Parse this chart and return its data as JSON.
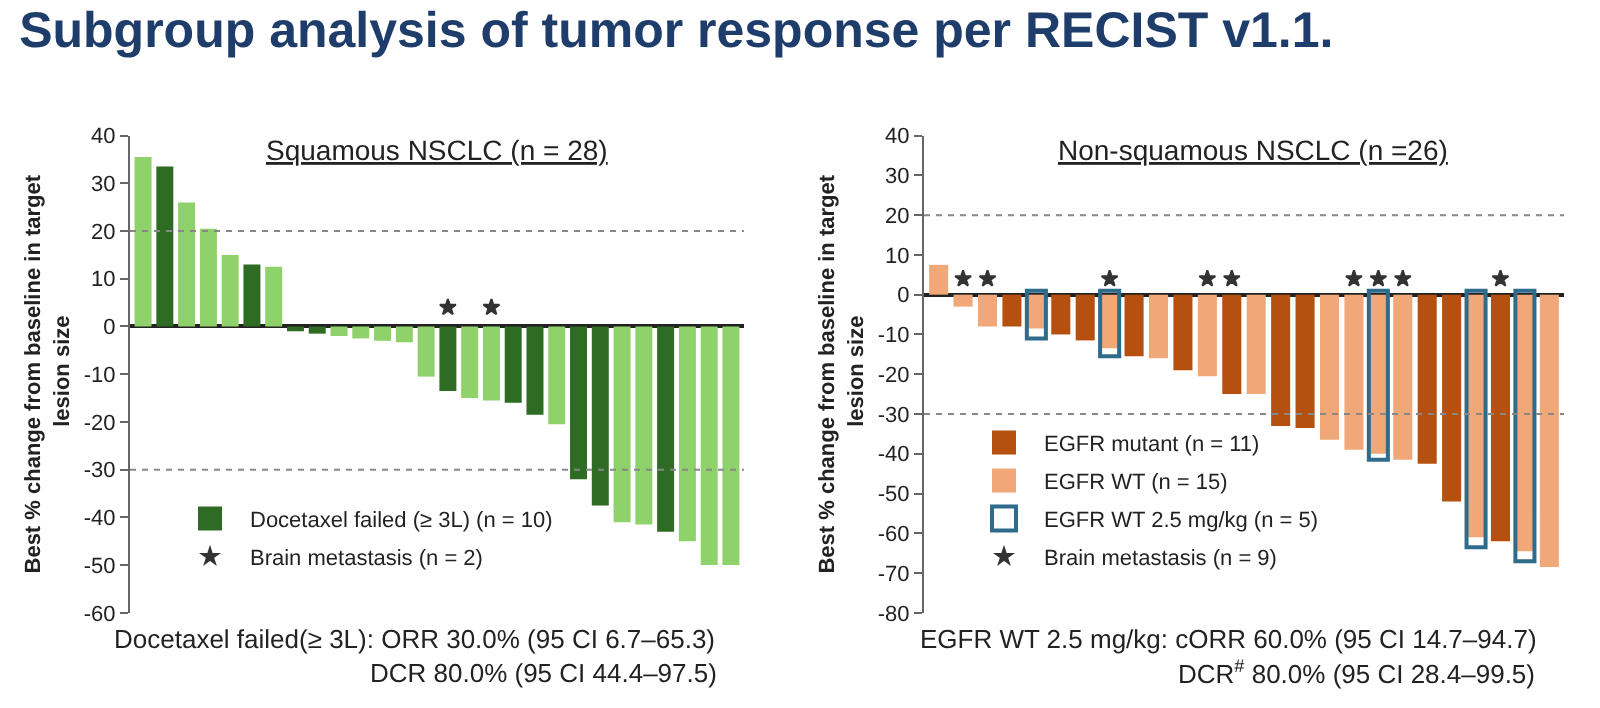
{
  "chart_data": [
    {
      "type": "bar",
      "title": "Subgroup analysis of tumor response per RECIST v1.1.",
      "subtitle": "Squamous NSCLC (n = 28)",
      "ylabel": "Best % change from baseline in target lesion size",
      "categories": [
        null,
        null,
        null,
        null,
        null,
        null,
        null,
        null,
        null,
        null,
        null,
        null,
        null,
        null,
        null,
        null,
        null,
        null,
        null,
        null,
        null,
        null,
        null,
        null,
        null,
        null,
        null,
        null
      ],
      "series": [
        {
          "color": "#8fd16a",
          "values": [
            35.5,
            null,
            26,
            20.5,
            15,
            null,
            12.5,
            null,
            null,
            -2,
            -2.5,
            -3,
            -3.3,
            -10.5,
            null,
            -15,
            -15.5,
            null,
            null,
            -20.5,
            null,
            null,
            -41,
            -41.5,
            null,
            -45,
            -50,
            -50
          ]
        },
        {
          "name": "Docetaxel failed (≥ 3L) (n = 10)",
          "color": "#2e6b23",
          "values": [
            null,
            33.5,
            null,
            null,
            null,
            13,
            null,
            -1,
            -1.5,
            null,
            null,
            null,
            null,
            null,
            -13.5,
            null,
            null,
            -16,
            -18.5,
            null,
            -32,
            -37.5,
            null,
            null,
            -43,
            null,
            null,
            null
          ]
        },
        {
          "name": "Brain metastasis (n = 2)",
          "type": "scatter",
          "marker": "star",
          "color": "#333333",
          "values": [
            null,
            null,
            null,
            null,
            null,
            null,
            null,
            null,
            null,
            null,
            null,
            null,
            null,
            null,
            4,
            null,
            4,
            null,
            null,
            null,
            null,
            null,
            null,
            null,
            null,
            null,
            null,
            null
          ]
        }
      ],
      "ylim": [
        -60,
        40
      ],
      "yticks": [
        -60,
        -50,
        -40,
        -30,
        -20,
        -10,
        0,
        10,
        20,
        30,
        40
      ],
      "ref_lines": [
        {
          "axis": "y",
          "value": 20,
          "line_style": "dotted",
          "color": "#888888"
        },
        {
          "axis": "y",
          "value": -30,
          "line_style": "dotted",
          "color": "#888888"
        }
      ],
      "legend": "bottom left",
      "annotations": [
        "Docetaxel failed(≥ 3L): ORR 30.0% (95 CI 6.7–65.3)",
        "DCR 80.0% (95 CI 44.4–97.5)"
      ]
    },
    {
      "type": "bar",
      "subtitle": "Non-squamous NSCLC (n =26)",
      "ylabel": "Best % change from baseline in target lesion size",
      "categories": [
        null,
        null,
        null,
        null,
        null,
        null,
        null,
        null,
        null,
        null,
        null,
        null,
        null,
        null,
        null,
        null,
        null,
        null,
        null,
        null,
        null,
        null,
        null,
        null,
        null,
        null
      ],
      "series": [
        {
          "name": "EGFR mutant (n = 11)",
          "color": "#b5500f",
          "values": [
            null,
            null,
            null,
            -8,
            null,
            -10,
            -11.5,
            null,
            -15.5,
            null,
            -19,
            null,
            -25,
            null,
            -33,
            -33.5,
            null,
            null,
            null,
            null,
            -42.5,
            -52,
            null,
            -62,
            null,
            null
          ]
        },
        {
          "name": "EGFR WT (n = 15)",
          "color": "#f0a878",
          "values": [
            7.5,
            -3,
            -8,
            null,
            -8.5,
            null,
            null,
            -13.5,
            null,
            -16,
            null,
            -20.5,
            null,
            -25,
            null,
            null,
            -36.5,
            -39,
            -40,
            -41.5,
            null,
            null,
            -61,
            null,
            -64.5,
            -68.5
          ]
        },
        {
          "name": "EGFR WT 2.5 mg/kg (n = 5)",
          "color": "#2f6b8a",
          "base": [
            null,
            null,
            null,
            null,
            1,
            null,
            null,
            1,
            null,
            null,
            null,
            null,
            null,
            null,
            null,
            null,
            null,
            null,
            1,
            null,
            null,
            null,
            1,
            null,
            1,
            null
          ],
          "values": [
            null,
            null,
            null,
            null,
            -12,
            null,
            null,
            -16.5,
            null,
            null,
            null,
            null,
            null,
            null,
            null,
            null,
            null,
            null,
            -42.5,
            null,
            null,
            null,
            -64.5,
            null,
            -68,
            null
          ]
        },
        {
          "name": "Brain metastasis (n = 9)",
          "type": "scatter",
          "marker": "star",
          "color": "#333333",
          "values": [
            null,
            4,
            4,
            null,
            null,
            null,
            null,
            4,
            null,
            null,
            null,
            4,
            4,
            null,
            null,
            null,
            null,
            4,
            4,
            4,
            null,
            null,
            null,
            4,
            null,
            null
          ]
        }
      ],
      "ylim": [
        -80,
        40
      ],
      "yticks": [
        -80,
        -70,
        -60,
        -50,
        -40,
        -30,
        -20,
        -10,
        0,
        10,
        20,
        30,
        40
      ],
      "ref_lines": [
        {
          "axis": "y",
          "value": 20,
          "line_style": "dotted",
          "color": "#888888"
        },
        {
          "axis": "y",
          "value": -30,
          "line_style": "dotted",
          "color": "#888888"
        }
      ],
      "legend": "bottom left",
      "annotations": [
        "EGFR WT 2.5 mg/kg: cORR 60.0% (95 CI 14.7–94.7)",
        "DCR$^{#}$ 80.0% (95 CI 28.4–99.5)"
      ]
    }
  ]
}
